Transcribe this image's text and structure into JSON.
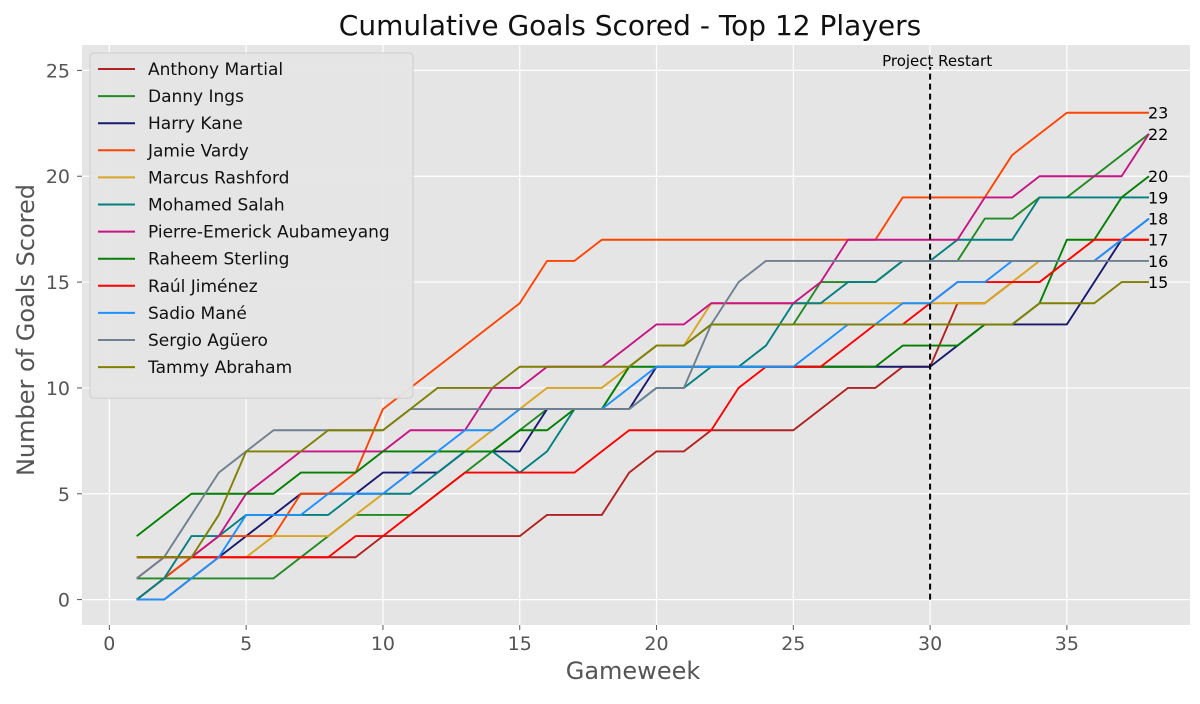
{
  "chart_data": {
    "type": "line",
    "title": "Cumulative Goals Scored - Top 12 Players",
    "xlabel": "Gameweek",
    "ylabel": "Number of Goals Scored",
    "xlim": [
      -1,
      39.5
    ],
    "ylim": [
      -1.2,
      26.2
    ],
    "xticks": [
      0,
      5,
      10,
      15,
      20,
      25,
      30,
      35
    ],
    "yticks": [
      0,
      5,
      10,
      15,
      20,
      25
    ],
    "grid": true,
    "legend_position": "upper left",
    "background": "#e5e5e5",
    "x": [
      1,
      2,
      3,
      4,
      5,
      6,
      7,
      8,
      9,
      10,
      11,
      12,
      13,
      14,
      15,
      16,
      17,
      18,
      19,
      20,
      21,
      22,
      23,
      24,
      25,
      26,
      27,
      28,
      29,
      30,
      31,
      32,
      33,
      34,
      35,
      36,
      37,
      38
    ],
    "annotation": {
      "text": "Project Restart",
      "x": 30,
      "color": "#000000"
    },
    "series": [
      {
        "name": "Anthony Martial",
        "color": "#b22222",
        "values": [
          0,
          0,
          1,
          2,
          2,
          2,
          2,
          2,
          2,
          3,
          3,
          3,
          3,
          3,
          3,
          4,
          4,
          4,
          6,
          7,
          7,
          8,
          8,
          8,
          8,
          9,
          10,
          10,
          11,
          11,
          14,
          14,
          15,
          15,
          16,
          16,
          17,
          17
        ]
      },
      {
        "name": "Danny Ings",
        "color": "#228b22",
        "values": [
          1,
          1,
          1,
          1,
          1,
          1,
          2,
          3,
          4,
          4,
          4,
          5,
          6,
          7,
          8,
          9,
          9,
          9,
          11,
          12,
          12,
          13,
          13,
          13,
          13,
          15,
          15,
          15,
          16,
          16,
          16,
          18,
          18,
          19,
          19,
          20,
          21,
          22
        ]
      },
      {
        "name": "Harry Kane",
        "color": "#191970",
        "values": [
          0,
          1,
          2,
          2,
          3,
          4,
          5,
          5,
          5,
          6,
          6,
          6,
          7,
          7,
          7,
          9,
          9,
          9,
          9,
          11,
          11,
          11,
          11,
          11,
          11,
          11,
          11,
          11,
          11,
          11,
          12,
          13,
          13,
          13,
          13,
          15,
          17,
          18
        ]
      },
      {
        "name": "Jamie Vardy",
        "color": "#ff4500",
        "values": [
          0,
          1,
          2,
          3,
          3,
          3,
          5,
          5,
          6,
          9,
          10,
          11,
          12,
          13,
          14,
          16,
          16,
          17,
          17,
          17,
          17,
          17,
          17,
          17,
          17,
          17,
          17,
          17,
          19,
          19,
          19,
          19,
          21,
          22,
          23,
          23,
          23,
          23
        ]
      },
      {
        "name": "Marcus Rashford",
        "color": "#daa520",
        "values": [
          2,
          2,
          2,
          2,
          2,
          3,
          3,
          3,
          4,
          5,
          6,
          7,
          7,
          8,
          9,
          10,
          10,
          10,
          11,
          12,
          12,
          14,
          14,
          14,
          14,
          14,
          14,
          14,
          14,
          14,
          14,
          14,
          15,
          16,
          16,
          17,
          17,
          17
        ]
      },
      {
        "name": "Mohamed Salah",
        "color": "#008080",
        "values": [
          0,
          1,
          3,
          3,
          4,
          4,
          4,
          4,
          5,
          5,
          5,
          6,
          7,
          7,
          6,
          7,
          9,
          9,
          9,
          10,
          10,
          11,
          11,
          12,
          14,
          14,
          15,
          15,
          16,
          16,
          17,
          17,
          17,
          19,
          19,
          19,
          19,
          19
        ]
      },
      {
        "name": "Pierre-Emerick Aubameyang",
        "color": "#c71585",
        "values": [
          1,
          2,
          2,
          3,
          5,
          6,
          7,
          7,
          7,
          7,
          8,
          8,
          8,
          10,
          10,
          11,
          11,
          11,
          12,
          13,
          13,
          14,
          14,
          14,
          14,
          15,
          17,
          17,
          17,
          17,
          17,
          19,
          19,
          20,
          20,
          20,
          20,
          22
        ]
      },
      {
        "name": "Raheem Sterling",
        "color": "#008000",
        "values": [
          3,
          4,
          5,
          5,
          5,
          5,
          6,
          6,
          6,
          7,
          7,
          7,
          7,
          7,
          8,
          8,
          9,
          9,
          11,
          11,
          11,
          11,
          11,
          11,
          11,
          11,
          11,
          11,
          12,
          12,
          12,
          13,
          13,
          14,
          17,
          17,
          19,
          20
        ]
      },
      {
        "name": "Raúl Jiménez",
        "color": "#ff0000",
        "values": [
          2,
          2,
          2,
          2,
          2,
          2,
          2,
          2,
          3,
          3,
          4,
          5,
          6,
          6,
          6,
          6,
          6,
          7,
          8,
          8,
          8,
          8,
          10,
          11,
          11,
          11,
          12,
          13,
          13,
          14,
          15,
          15,
          15,
          15,
          16,
          17,
          17,
          17
        ]
      },
      {
        "name": "Sadio Mané",
        "color": "#1e90ff",
        "values": [
          0,
          0,
          1,
          2,
          4,
          4,
          4,
          5,
          5,
          5,
          6,
          7,
          8,
          8,
          9,
          9,
          9,
          9,
          10,
          11,
          11,
          11,
          11,
          11,
          11,
          12,
          13,
          13,
          14,
          14,
          15,
          15,
          16,
          16,
          16,
          16,
          17,
          18
        ]
      },
      {
        "name": "Sergio Agüero",
        "color": "#708090",
        "values": [
          1,
          2,
          4,
          6,
          7,
          8,
          8,
          8,
          8,
          8,
          9,
          9,
          9,
          9,
          9,
          9,
          9,
          9,
          9,
          10,
          10,
          13,
          15,
          16,
          16,
          16,
          16,
          16,
          16,
          16,
          16,
          16,
          16,
          16,
          16,
          16,
          16,
          16
        ]
      },
      {
        "name": "Tammy Abraham",
        "color": "#808000",
        "values": [
          2,
          2,
          2,
          4,
          7,
          7,
          7,
          8,
          8,
          8,
          9,
          10,
          10,
          10,
          11,
          11,
          11,
          11,
          11,
          12,
          12,
          13,
          13,
          13,
          13,
          13,
          13,
          13,
          13,
          13,
          13,
          13,
          13,
          14,
          14,
          14,
          15,
          15
        ]
      }
    ],
    "end_labels": [
      {
        "text": "23",
        "value": 23
      },
      {
        "text": "22",
        "value": 22
      },
      {
        "text": "20",
        "value": 20
      },
      {
        "text": "19",
        "value": 19
      },
      {
        "text": "18",
        "value": 18
      },
      {
        "text": "17",
        "value": 17
      },
      {
        "text": "16",
        "value": 16
      },
      {
        "text": "15",
        "value": 15
      }
    ]
  }
}
